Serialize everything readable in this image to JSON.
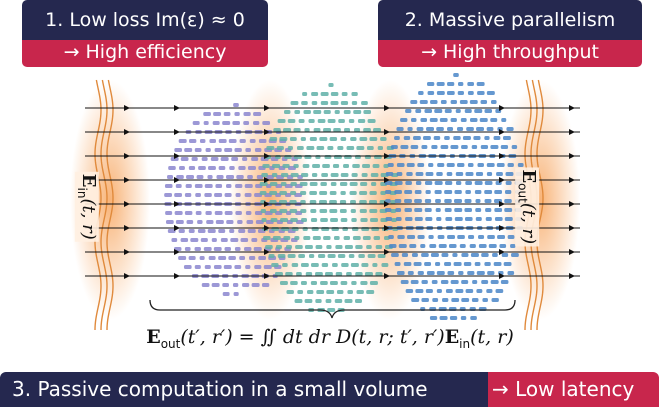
{
  "box1": {
    "title": "1. Low loss Im(ε) ≈ 0",
    "result": "→ High efficiency"
  },
  "box2": {
    "title": "2. Massive parallelism",
    "result": "→ High throughput"
  },
  "bar": {
    "title": "3. Passive computation in a small volume",
    "result": "→ Low latency"
  },
  "labels": {
    "e_in": "E",
    "e_in_sub": "in",
    "e_in_args": "(t, r)",
    "e_out": "E",
    "e_out_sub": "out",
    "e_out_args": "(t, r)"
  },
  "formula": {
    "lhs": "E",
    "lhs_sub": "out",
    "lhs_args": "(t′, r′) = ∬ dt dr D(t, r; t′, r′)",
    "rhs": "E",
    "rhs_sub": "in",
    "rhs_args": "(t, r)"
  },
  "colors": {
    "navy": "#25284f",
    "crimson": "#c8264c",
    "wave": "#e08a3c",
    "lens1": "#8b86cf",
    "lens2": "#5fb0a8",
    "lens3": "#4a86c8",
    "glow": "#f7a660"
  }
}
